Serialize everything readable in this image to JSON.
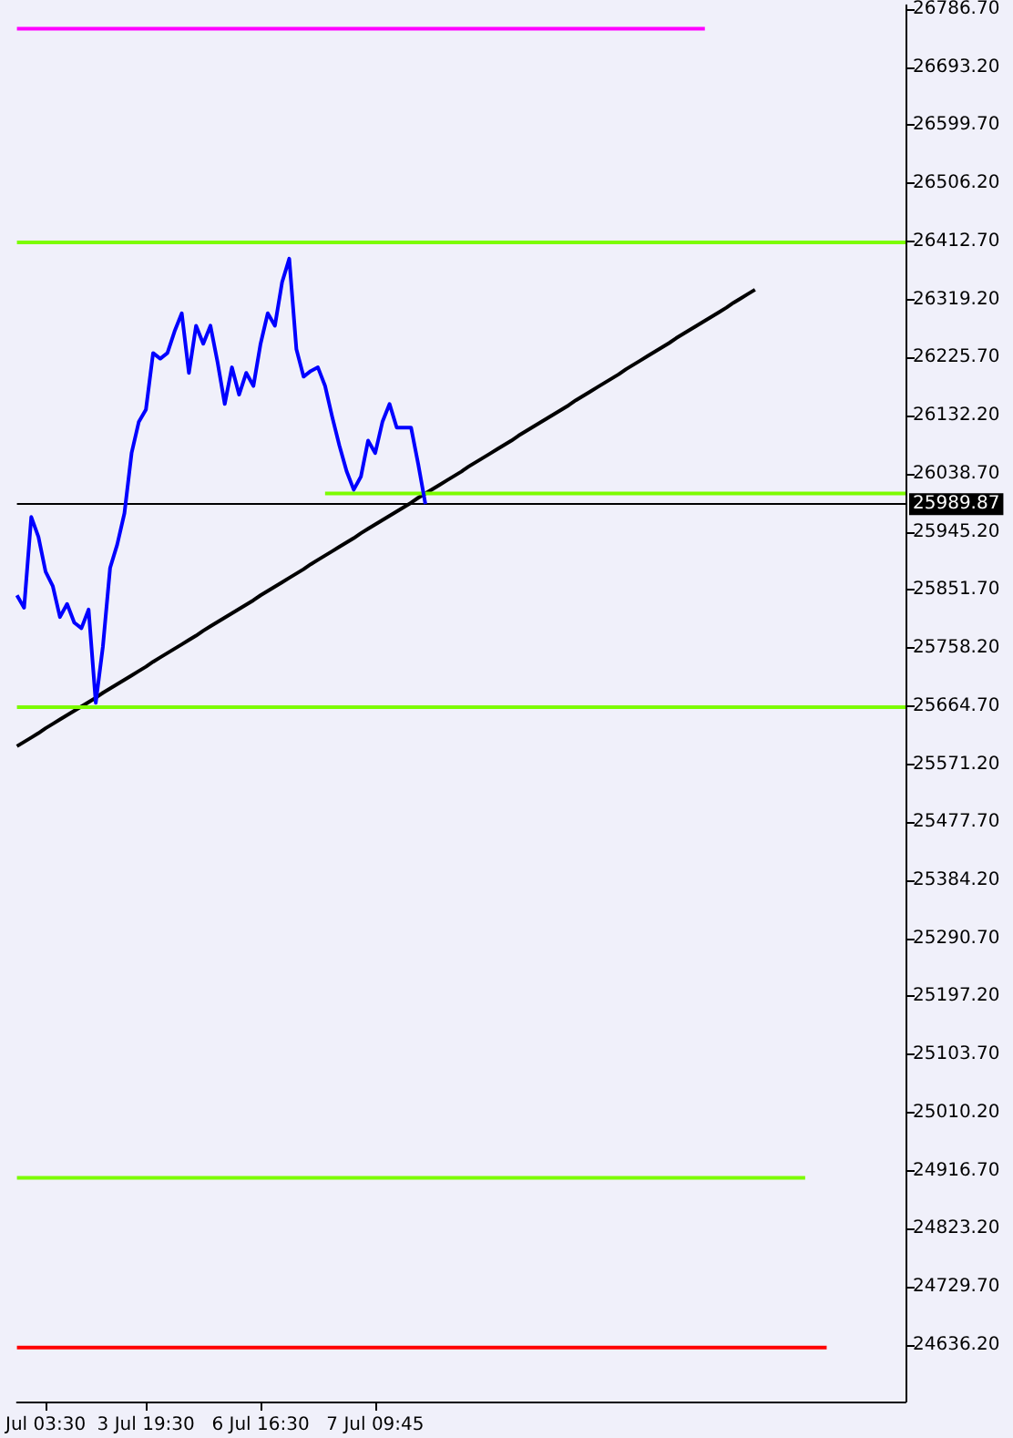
{
  "chart_data": {
    "type": "line",
    "categories": [
      null,
      null,
      null,
      null,
      "Jul 03:30",
      null,
      null,
      null,
      null,
      null,
      null,
      null,
      null,
      null,
      null,
      null,
      null,
      null,
      "3 Jul 19:30",
      null,
      null,
      null,
      null,
      null,
      null,
      null,
      null,
      null,
      null,
      null,
      null,
      null,
      null,
      null,
      "6 Jul 16:30",
      null,
      null,
      null,
      null,
      null,
      null,
      null,
      null,
      null,
      null,
      null,
      null,
      null,
      null,
      null,
      "7 Jul 09:45",
      null,
      null,
      null,
      null,
      null,
      null,
      null,
      null,
      null,
      null,
      null,
      null,
      null,
      null,
      null,
      null,
      null,
      null,
      null,
      null,
      null,
      null,
      null,
      null,
      null,
      null,
      null,
      null,
      null,
      null,
      null,
      null,
      null,
      null,
      null,
      null,
      null,
      null,
      null,
      null,
      null,
      null,
      null,
      null,
      null,
      null,
      null,
      null,
      null,
      null,
      null,
      null,
      null,
      null,
      null,
      null,
      null,
      null,
      null,
      null,
      null,
      null,
      null,
      null,
      null,
      null,
      null,
      null,
      null,
      null,
      null,
      null,
      null,
      null
    ],
    "series": [
      {
        "type": "line",
        "color": "#0000ff",
        "values": [
          25843,
          25823,
          25969,
          25937,
          25881,
          25858,
          25808,
          25829,
          25799,
          25790,
          25820,
          25670,
          25761,
          25887,
          25925,
          25975,
          26072,
          26122,
          26142,
          26233,
          26224,
          26233,
          26268,
          26297,
          26201,
          26277,
          26248,
          26277,
          26218,
          26151,
          26210,
          26166,
          26201,
          26180,
          26248,
          26297,
          26277,
          26347,
          26385,
          26239,
          26195,
          26204,
          26210,
          26180,
          26130,
          26084,
          26043,
          26013,
          26034,
          26092,
          26072,
          26122,
          26151,
          26113,
          26113,
          26113,
          26054,
          25990,
          null,
          null,
          null,
          null,
          null,
          null,
          null,
          null,
          null,
          null,
          null,
          null,
          null,
          null,
          null,
          null,
          null,
          null,
          null,
          null,
          null,
          null,
          null,
          null,
          null,
          null,
          null,
          null,
          null,
          null,
          null,
          null,
          null,
          null,
          null,
          null,
          null,
          null,
          null,
          null,
          null,
          null,
          null,
          null,
          null,
          null,
          null,
          null,
          null,
          null,
          null,
          null,
          null,
          null,
          null,
          null,
          null,
          null,
          null,
          null,
          null,
          null,
          null,
          null,
          null,
          null,
          null
        ]
      },
      {
        "type": "line",
        "color": "#000000",
        "values": [
          25600,
          25607,
          25614,
          25621,
          25629,
          25636,
          25643,
          25650,
          25657,
          25664,
          25671,
          25678,
          25686,
          25693,
          25700,
          25707,
          25714,
          25721,
          25728,
          25736,
          25743,
          25750,
          25757,
          25764,
          25771,
          25778,
          25786,
          25793,
          25800,
          25807,
          25814,
          25821,
          25828,
          25835,
          25843,
          25850,
          25857,
          25864,
          25871,
          25878,
          25885,
          25893,
          25900,
          25907,
          25914,
          25921,
          25928,
          25935,
          25943,
          25950,
          25957,
          25964,
          25971,
          25978,
          25985,
          25992,
          26000,
          26007,
          26014,
          26021,
          26028,
          26035,
          26042,
          26050,
          26057,
          26064,
          26071,
          26078,
          26085,
          26092,
          26100,
          26107,
          26114,
          26121,
          26128,
          26135,
          26142,
          26149,
          26157,
          26164,
          26171,
          26178,
          26185,
          26192,
          26199,
          26207,
          26214,
          26221,
          26228,
          26235,
          26242,
          26249,
          26257,
          26264,
          26271,
          26278,
          26285,
          26292,
          26299,
          26306,
          26314,
          26321,
          26328,
          26335,
          null,
          null,
          null,
          null,
          null,
          null,
          null,
          null,
          null,
          null,
          null,
          null,
          null,
          null,
          null,
          null,
          null,
          null,
          null,
          null,
          null
        ]
      },
      {
        "type": "line",
        "color": "#ff00ff",
        "values": [
          26755,
          26755,
          26755,
          26755,
          26755,
          26755,
          26755,
          26755,
          26755,
          26755,
          26755,
          26755,
          26755,
          26755,
          26755,
          26755,
          26755,
          26755,
          26755,
          26755,
          26755,
          26755,
          26755,
          26755,
          26755,
          26755,
          26755,
          26755,
          26755,
          26755,
          26755,
          26755,
          26755,
          26755,
          26755,
          26755,
          26755,
          26755,
          26755,
          26755,
          26755,
          26755,
          26755,
          26755,
          26755,
          26755,
          26755,
          26755,
          26755,
          26755,
          26755,
          26755,
          26755,
          26755,
          26755,
          26755,
          26755,
          26755,
          26755,
          26755,
          26755,
          26755,
          26755,
          26755,
          26755,
          26755,
          26755,
          26755,
          26755,
          26755,
          26755,
          26755,
          26755,
          26755,
          26755,
          26755,
          26755,
          26755,
          26755,
          26755,
          26755,
          26755,
          26755,
          26755,
          26755,
          26755,
          26755,
          26755,
          26755,
          26755,
          26755,
          26755,
          26755,
          26755,
          26755,
          26755,
          26755,
          null,
          null,
          null,
          null,
          null,
          null,
          null,
          null,
          null,
          null,
          null,
          null,
          null,
          null,
          null,
          null,
          null,
          null,
          null,
          null,
          null,
          null,
          null,
          null,
          null,
          null,
          null,
          null
        ]
      },
      {
        "type": "line",
        "color": "#7cfc00",
        "values": [
          null,
          null,
          null,
          null,
          null,
          null,
          null,
          null,
          null,
          null,
          null,
          null,
          null,
          null,
          null,
          null,
          null,
          null,
          null,
          null,
          null,
          null,
          null,
          null,
          null,
          null,
          null,
          null,
          null,
          null,
          null,
          null,
          null,
          null,
          null,
          null,
          null,
          null,
          null,
          null,
          null,
          null,
          null,
          26007,
          26007,
          26007,
          26007,
          26007,
          26007,
          26007,
          26007,
          26007,
          26007,
          26007,
          26007,
          26007,
          26007,
          26007,
          26007,
          26007,
          26007,
          26007,
          26007,
          26007,
          26007,
          26007,
          26007,
          26007,
          26007,
          26007,
          26007,
          26007,
          26007,
          26007,
          26007,
          26007,
          26007,
          26007,
          26007,
          26007,
          26007,
          26007,
          26007,
          26007,
          26007,
          26007,
          26007,
          26007,
          26007,
          26007,
          26007,
          26007,
          26007,
          26007,
          26007,
          26007,
          26007,
          26007,
          26007,
          26007,
          26007,
          26007,
          26007,
          26007,
          26007,
          26007,
          26007,
          26007,
          26007,
          26007,
          26007,
          26007,
          26007,
          26007,
          26007,
          26007,
          26007,
          26007,
          26007,
          26007,
          26007,
          26007,
          26007,
          26007,
          26007
        ]
      },
      {
        "type": "line",
        "color": "#7cfc00",
        "values": [
          24905,
          24905,
          24905,
          24905,
          24905,
          24905,
          24905,
          24905,
          24905,
          24905,
          24905,
          24905,
          24905,
          24905,
          24905,
          24905,
          24905,
          24905,
          24905,
          24905,
          24905,
          24905,
          24905,
          24905,
          24905,
          24905,
          24905,
          24905,
          24905,
          24905,
          24905,
          24905,
          24905,
          24905,
          24905,
          24905,
          24905,
          24905,
          24905,
          24905,
          24905,
          24905,
          24905,
          24905,
          24905,
          24905,
          24905,
          24905,
          24905,
          24905,
          24905,
          24905,
          24905,
          24905,
          24905,
          24905,
          24905,
          24905,
          24905,
          24905,
          24905,
          24905,
          24905,
          24905,
          24905,
          24905,
          24905,
          24905,
          24905,
          24905,
          24905,
          24905,
          24905,
          24905,
          24905,
          24905,
          24905,
          24905,
          24905,
          24905,
          24905,
          24905,
          24905,
          24905,
          24905,
          24905,
          24905,
          24905,
          24905,
          24905,
          24905,
          24905,
          24905,
          24905,
          24905,
          24905,
          24905,
          24905,
          24905,
          24905,
          24905,
          24905,
          24905,
          24905,
          24905,
          24905,
          24905,
          24905,
          24905,
          24905,
          24905,
          null,
          null,
          null,
          null,
          null,
          null,
          null,
          null,
          null,
          null,
          null,
          null,
          null,
          null
        ]
      },
      {
        "type": "line",
        "color": "#ff0000",
        "values": [
          24632,
          24632,
          24632,
          24632,
          24632,
          24632,
          24632,
          24632,
          24632,
          24632,
          24632,
          24632,
          24632,
          24632,
          24632,
          24632,
          24632,
          24632,
          24632,
          24632,
          24632,
          24632,
          24632,
          24632,
          24632,
          24632,
          24632,
          24632,
          24632,
          24632,
          24632,
          24632,
          24632,
          24632,
          24632,
          24632,
          24632,
          24632,
          24632,
          24632,
          24632,
          24632,
          24632,
          24632,
          24632,
          24632,
          24632,
          24632,
          24632,
          24632,
          24632,
          24632,
          24632,
          24632,
          24632,
          24632,
          24632,
          24632,
          24632,
          24632,
          24632,
          24632,
          24632,
          24632,
          24632,
          24632,
          24632,
          24632,
          24632,
          24632,
          24632,
          24632,
          24632,
          24632,
          24632,
          24632,
          24632,
          24632,
          24632,
          24632,
          24632,
          24632,
          24632,
          24632,
          24632,
          24632,
          24632,
          24632,
          24632,
          24632,
          24632,
          24632,
          24632,
          24632,
          24632,
          24632,
          24632,
          24632,
          24632,
          24632,
          24632,
          24632,
          24632,
          24632,
          24632,
          24632,
          24632,
          24632,
          24632,
          24632,
          24632,
          24632,
          24632,
          24632,
          null,
          null,
          null,
          null,
          null,
          null,
          null,
          null,
          null,
          null,
          null
        ]
      }
    ],
    "ylim": [
      24545,
      26793
    ],
    "yticks": [
      {
        "value": 24636.2,
        "label": "24636.20"
      },
      {
        "value": 24729.7,
        "label": "24729.70"
      },
      {
        "value": 24823.2,
        "label": "24823.20"
      },
      {
        "value": 24916.7,
        "label": "24916.70"
      },
      {
        "value": 25010.2,
        "label": "25010.20"
      },
      {
        "value": 25103.7,
        "label": "25103.70"
      },
      {
        "value": 25197.2,
        "label": "25197.20"
      },
      {
        "value": 25290.7,
        "label": "25290.70"
      },
      {
        "value": 25384.2,
        "label": "25384.20"
      },
      {
        "value": 25477.7,
        "label": "25477.70"
      },
      {
        "value": 25571.2,
        "label": "25571.20"
      },
      {
        "value": 25664.7,
        "label": "25664.70"
      },
      {
        "value": 25758.2,
        "label": "25758.20"
      },
      {
        "value": 25851.7,
        "label": "25851.70"
      },
      {
        "value": 25945.2,
        "label": "25945.20"
      },
      {
        "value": 26038.7,
        "label": "26038.70"
      },
      {
        "value": 26132.2,
        "label": "26132.20"
      },
      {
        "value": 26225.7,
        "label": "26225.70"
      },
      {
        "value": 26319.2,
        "label": "26319.20"
      },
      {
        "value": 26412.7,
        "label": "26412.70"
      },
      {
        "value": 26506.2,
        "label": "26506.20"
      },
      {
        "value": 26599.7,
        "label": "26599.70"
      },
      {
        "value": 26693.2,
        "label": "26693.20"
      },
      {
        "value": 26786.7,
        "label": "26786.70"
      }
    ],
    "ref_lines": [
      {
        "axis": "y",
        "value": 26413,
        "label": null,
        "color": "#7cfc00"
      },
      {
        "axis": "y",
        "value": 25989.87,
        "label": "25989.87",
        "color": "#000000"
      },
      {
        "axis": "y",
        "value": 25665,
        "label": null,
        "color": "#7cfc00"
      }
    ],
    "grid": false,
    "marker": "none",
    "line_style": "solid"
  }
}
